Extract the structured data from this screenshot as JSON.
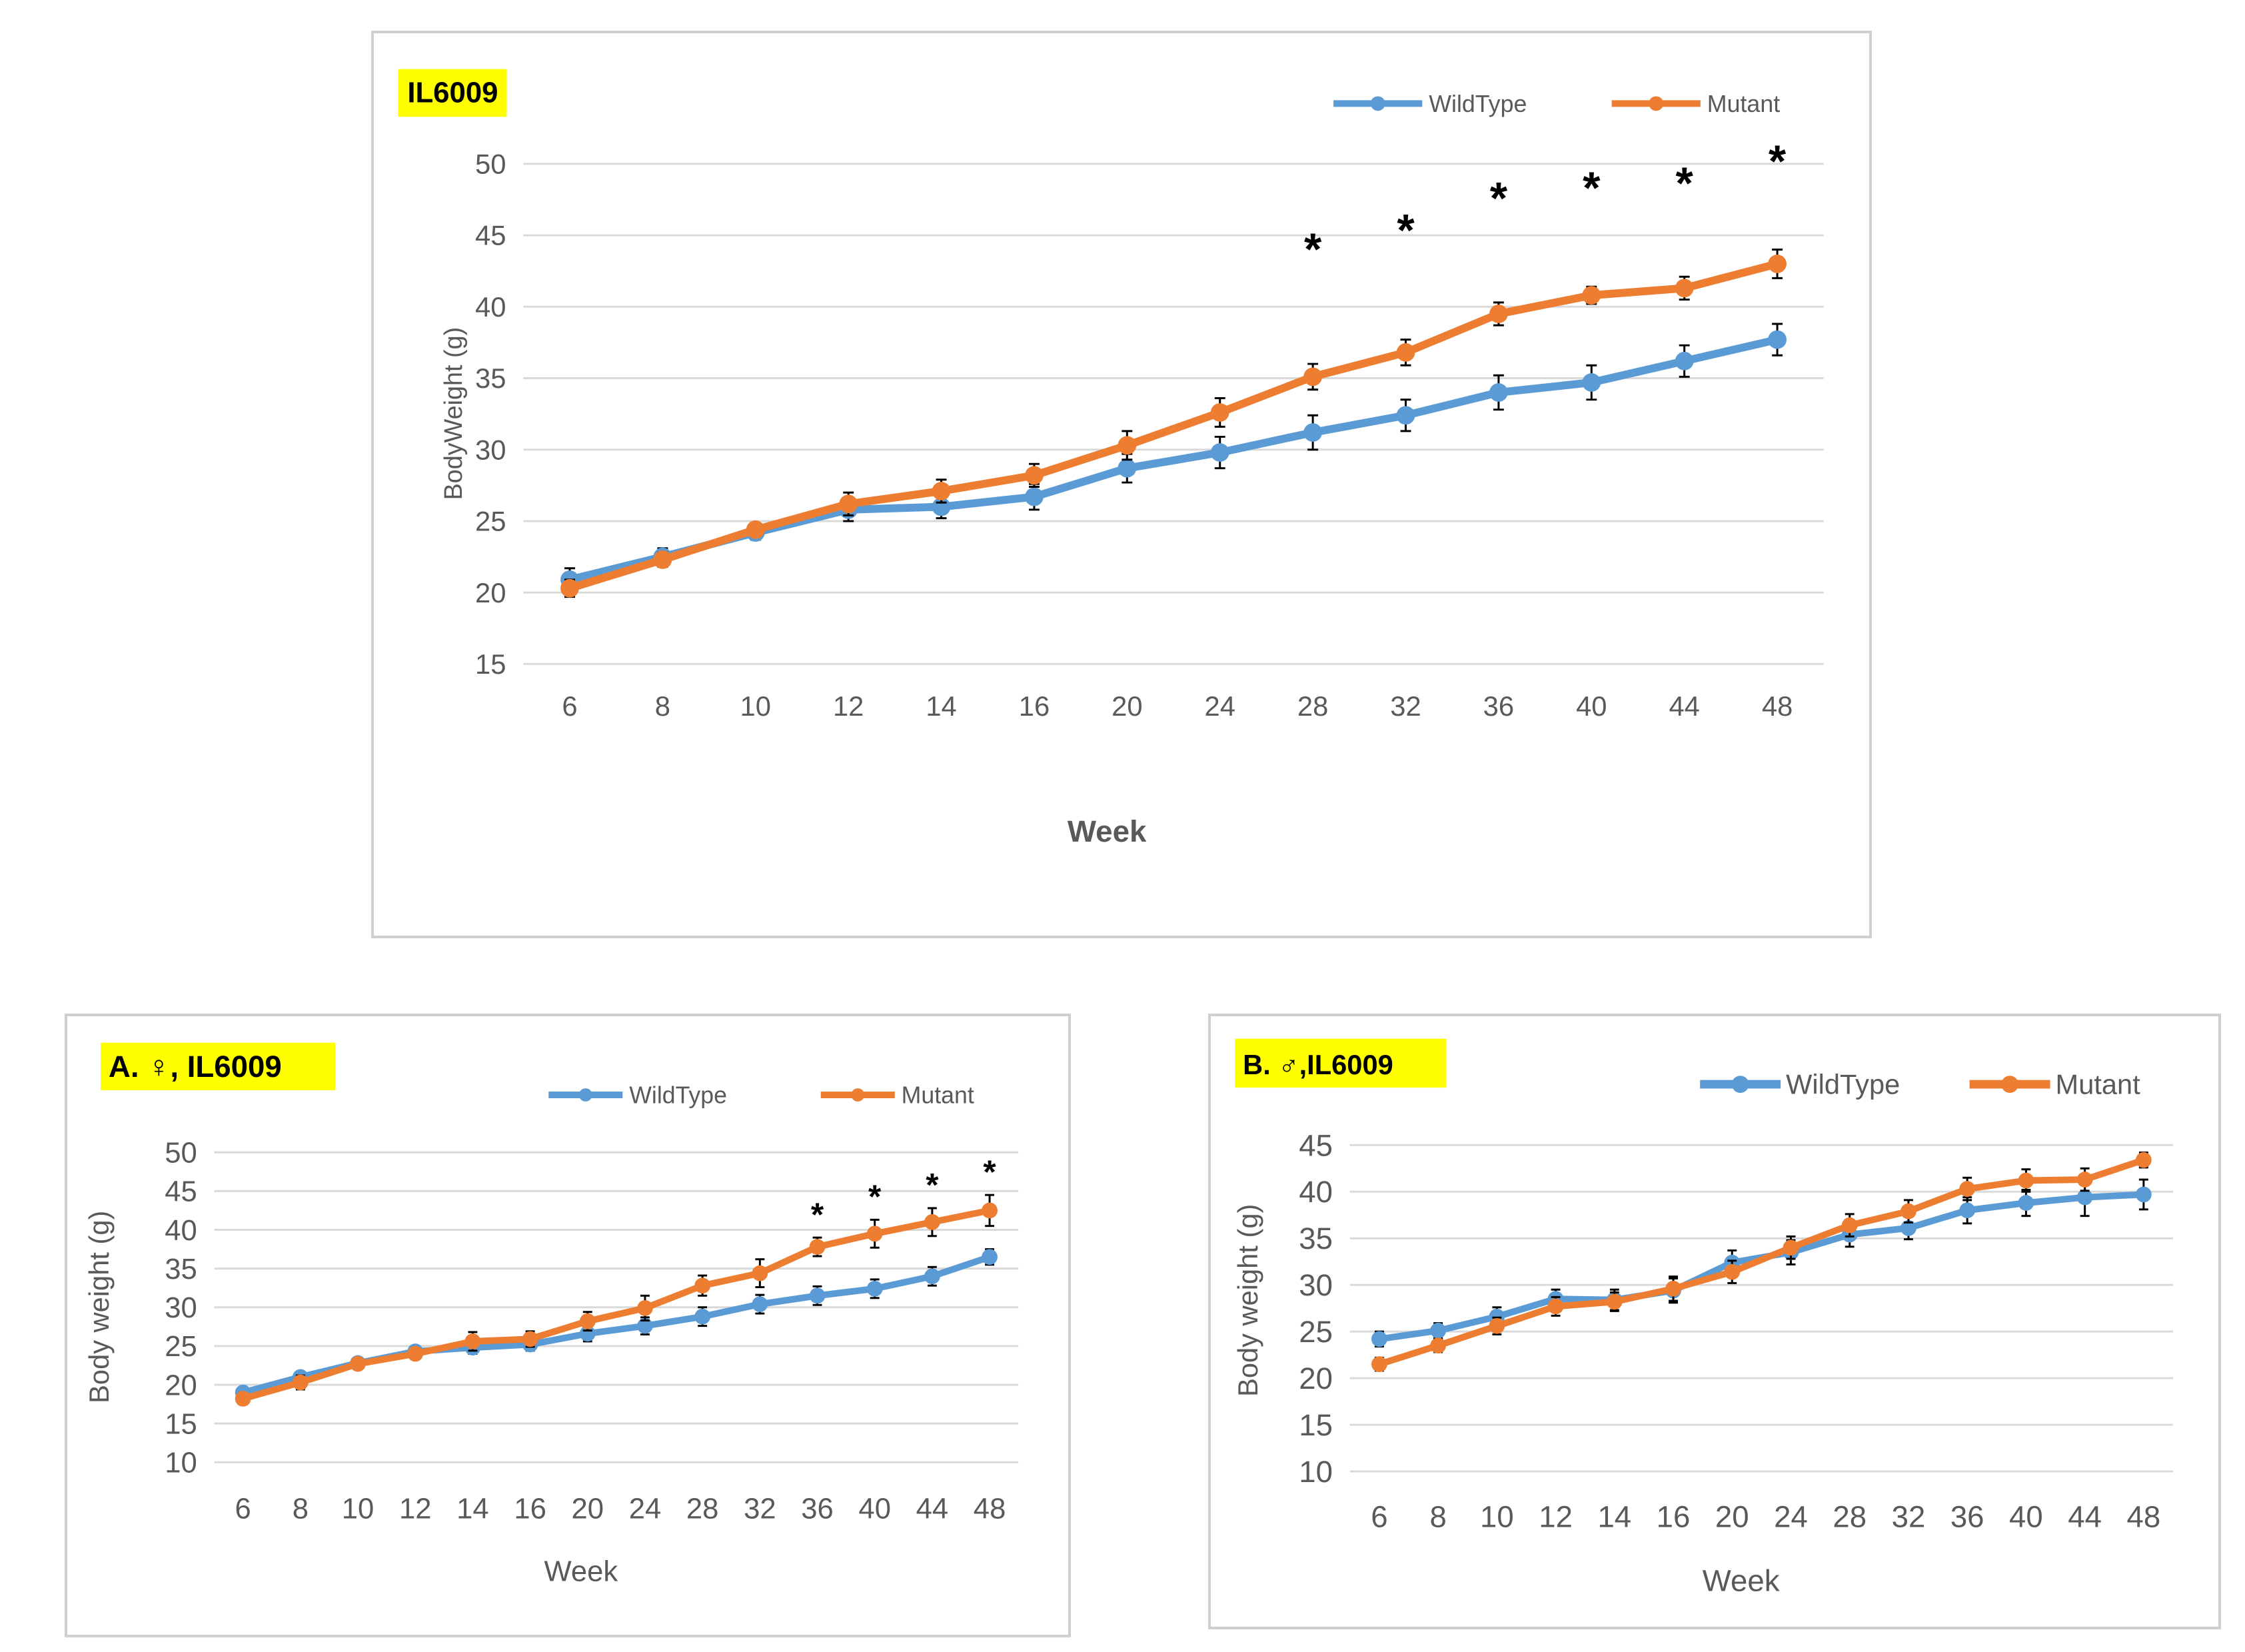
{
  "colors": {
    "wildtype": "#5b9bd5",
    "mutant": "#ed7d31",
    "badge": "#ffff00"
  },
  "chart_data": [
    {
      "type": "line",
      "badge": "IL6009",
      "title": "IL6009",
      "xlabel": "Week",
      "ylabel": "BodyWeight (g)",
      "ylim": [
        15,
        50
      ],
      "yticks": [
        "15",
        "20",
        "25",
        "30",
        "35",
        "40",
        "45",
        "50"
      ],
      "categories": [
        "6",
        "8",
        "10",
        "12",
        "14",
        "16",
        "20",
        "24",
        "28",
        "32",
        "36",
        "40",
        "44",
        "48"
      ],
      "legend": [
        "WildType",
        "Mutant"
      ],
      "legend_position": "top-right",
      "series": [
        {
          "name": "WildType",
          "values": [
            20.9,
            22.5,
            24.2,
            25.8,
            26.0,
            26.7,
            28.7,
            29.8,
            31.2,
            32.4,
            34.0,
            34.7,
            36.2,
            37.7
          ],
          "errors": [
            0.8,
            0.6,
            0.5,
            0.8,
            0.8,
            0.9,
            1.0,
            1.1,
            1.2,
            1.1,
            1.2,
            1.2,
            1.1,
            1.1
          ]
        },
        {
          "name": "Mutant",
          "values": [
            20.3,
            22.3,
            24.4,
            26.2,
            27.1,
            28.2,
            30.3,
            32.6,
            35.1,
            36.8,
            39.5,
            40.8,
            41.3,
            43.0
          ],
          "errors": [
            0.6,
            0.5,
            0.4,
            0.8,
            0.8,
            0.8,
            1.0,
            1.0,
            0.9,
            0.9,
            0.8,
            0.6,
            0.8,
            1.0
          ]
        }
      ],
      "significance": {
        "marker": "*",
        "at_indices": [
          8,
          9,
          10,
          11,
          12,
          13
        ]
      }
    },
    {
      "type": "line",
      "badge": "A. ♀, IL6009",
      "title": "A. ♀, IL6009",
      "xlabel": "Week",
      "ylabel": "Body weight (g)",
      "ylim": [
        10,
        50
      ],
      "yticks": [
        "10",
        "15",
        "20",
        "25",
        "30",
        "35",
        "40",
        "45",
        "50"
      ],
      "categories": [
        "6",
        "8",
        "10",
        "12",
        "14",
        "16",
        "20",
        "24",
        "28",
        "32",
        "36",
        "40",
        "44",
        "48"
      ],
      "legend": [
        "WildType",
        "Mutant"
      ],
      "legend_position": "top-right",
      "series": [
        {
          "name": "WildType",
          "values": [
            19.0,
            21.0,
            22.8,
            24.3,
            24.8,
            25.2,
            26.6,
            27.6,
            28.8,
            30.4,
            31.5,
            32.4,
            34.0,
            36.5
          ],
          "errors": [
            0.6,
            0.6,
            0.6,
            0.7,
            0.8,
            0.8,
            1.0,
            1.1,
            1.2,
            1.2,
            1.2,
            1.2,
            1.2,
            1.0
          ]
        },
        {
          "name": "Mutant",
          "values": [
            18.2,
            20.3,
            22.7,
            24.0,
            25.6,
            25.9,
            28.2,
            29.9,
            32.8,
            34.4,
            37.8,
            39.5,
            41.0,
            42.5
          ],
          "errors": [
            0.6,
            0.9,
            0.7,
            0.7,
            1.2,
            1.0,
            1.2,
            1.6,
            1.3,
            1.8,
            1.2,
            1.8,
            1.8,
            2.0
          ]
        }
      ],
      "significance": {
        "marker": "*",
        "at_indices": [
          10,
          11,
          12,
          13
        ]
      }
    },
    {
      "type": "line",
      "badge": "B. ♂,IL6009",
      "title": "B. ♂,IL6009",
      "xlabel": "Week",
      "ylabel": "Body weight (g)",
      "ylim": [
        10,
        45
      ],
      "yticks": [
        "10",
        "15",
        "20",
        "25",
        "30",
        "35",
        "40",
        "45"
      ],
      "categories": [
        "6",
        "8",
        "10",
        "12",
        "14",
        "16",
        "20",
        "24",
        "28",
        "32",
        "36",
        "40",
        "44",
        "48"
      ],
      "legend": [
        "WildType",
        "Mutant"
      ],
      "legend_position": "top-right",
      "series": [
        {
          "name": "WildType",
          "values": [
            24.2,
            25.1,
            26.6,
            28.5,
            28.4,
            29.4,
            32.4,
            33.5,
            35.4,
            36.1,
            38.0,
            38.8,
            39.4,
            39.7
          ],
          "errors": [
            0.8,
            0.8,
            1.0,
            1.0,
            1.1,
            1.3,
            1.3,
            1.3,
            1.3,
            1.2,
            1.4,
            1.4,
            2.0,
            1.6
          ]
        },
        {
          "name": "Mutant",
          "values": [
            21.5,
            23.5,
            25.6,
            27.7,
            28.2,
            29.6,
            31.4,
            34.0,
            36.4,
            37.9,
            40.3,
            41.2,
            41.3,
            43.4
          ],
          "errors": [
            0.7,
            0.7,
            0.9,
            1.0,
            1.0,
            1.3,
            1.2,
            1.2,
            1.2,
            1.2,
            1.2,
            1.2,
            1.2,
            0.8
          ]
        }
      ]
    }
  ]
}
